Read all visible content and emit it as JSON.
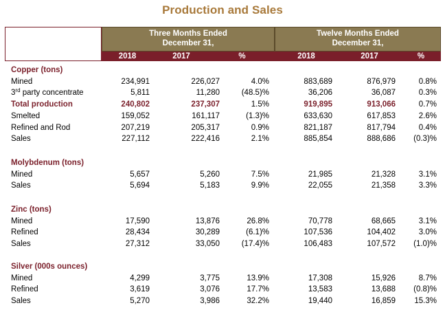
{
  "title": "Production and Sales",
  "header": {
    "group_three": [
      "Three Months Ended",
      "December 31,"
    ],
    "group_twelve": [
      "Twelve Months Ended",
      "December 31,"
    ],
    "columns": [
      "2018",
      "2017",
      "%",
      "2018",
      "2017",
      "%"
    ]
  },
  "colors": {
    "maroon": "#7a1f2a",
    "gold": "#a8793a",
    "olive": "#8a7a52"
  },
  "sections": [
    {
      "name": "Copper (tons)",
      "rows": [
        {
          "label": "Mined",
          "values": [
            "234,991",
            "226,027",
            "4.0%",
            "883,689",
            "876,979",
            "0.8%"
          ]
        },
        {
          "label_main": "3",
          "label_sup": "rd",
          "label_rest": " party concentrate",
          "values": [
            "5,811",
            "11,280",
            "(48.5)%",
            "36,206",
            "36,087",
            "0.3%"
          ]
        },
        {
          "label": "Total production",
          "bold": true,
          "values": [
            "240,802",
            "237,307",
            "1.5%",
            "919,895",
            "913,066",
            "0.7%"
          ]
        },
        {
          "label": "Smelted",
          "values": [
            "159,052",
            "161,117",
            "(1.3)%",
            "633,630",
            "617,853",
            "2.6%"
          ]
        },
        {
          "label": "Refined and Rod",
          "values": [
            "207,219",
            "205,317",
            "0.9%",
            "821,187",
            "817,794",
            "0.4%"
          ]
        },
        {
          "label": "Sales",
          "values": [
            "227,112",
            "222,416",
            "2.1%",
            "885,854",
            "888,686",
            "(0.3)%"
          ]
        }
      ]
    },
    {
      "name": "Molybdenum (tons)",
      "rows": [
        {
          "label": "Mined",
          "values": [
            "5,657",
            "5,260",
            "7.5%",
            "21,985",
            "21,328",
            "3.1%"
          ]
        },
        {
          "label": "Sales",
          "values": [
            "5,694",
            "5,183",
            "9.9%",
            "22,055",
            "21,358",
            "3.3%"
          ]
        }
      ]
    },
    {
      "name": "Zinc (tons)",
      "rows": [
        {
          "label": "Mined",
          "values": [
            "17,590",
            "13,876",
            "26.8%",
            "70,778",
            "68,665",
            "3.1%"
          ]
        },
        {
          "label": "Refined",
          "values": [
            "28,434",
            "30,289",
            "(6.1)%",
            "107,536",
            "104,402",
            "3.0%"
          ]
        },
        {
          "label": "Sales",
          "values": [
            "27,312",
            "33,050",
            "(17.4)%",
            "106,483",
            "107,572",
            "(1.0)%"
          ]
        }
      ]
    },
    {
      "name": "Silver (000s ounces)",
      "rows": [
        {
          "label": "Mined",
          "values": [
            "4,299",
            "3,775",
            "13.9%",
            "17,308",
            "15,926",
            "8.7%"
          ]
        },
        {
          "label": "Refined",
          "values": [
            "3,619",
            "3,076",
            "17.7%",
            "13,583",
            "13,688",
            "(0.8)%"
          ]
        },
        {
          "label": "Sales",
          "values": [
            "5,270",
            "3,986",
            "32.2%",
            "19,440",
            "16,859",
            "15.3%"
          ]
        }
      ]
    }
  ]
}
